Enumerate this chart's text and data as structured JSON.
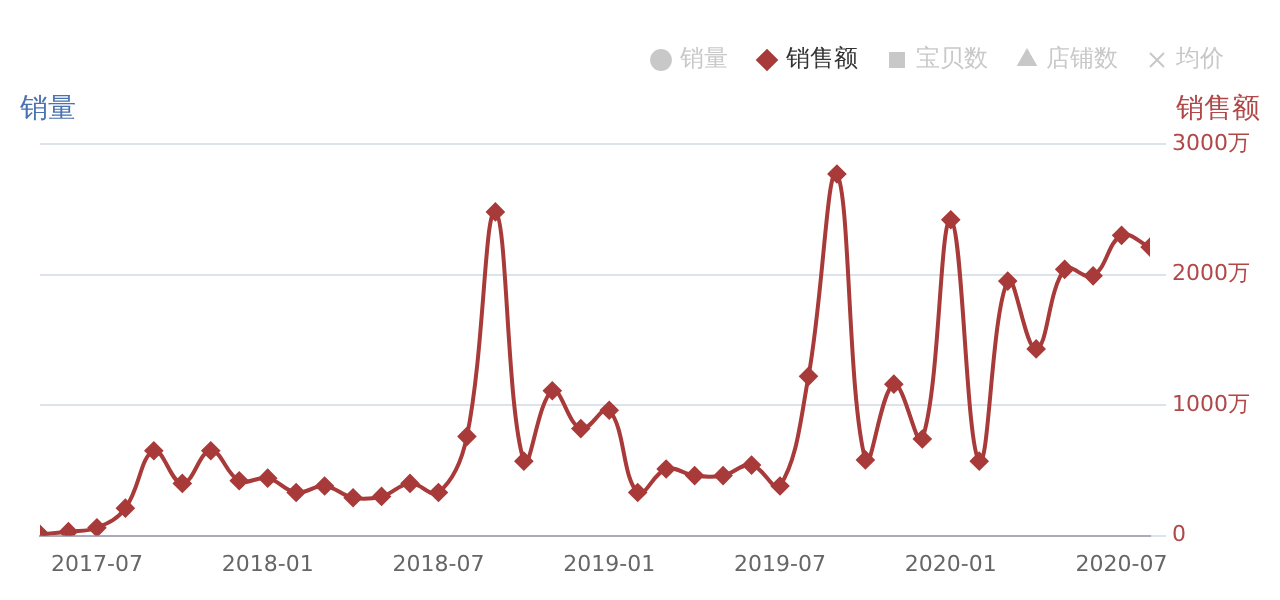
{
  "chart_data": {
    "type": "line",
    "ylabel": "销量",
    "y2label": "销售额",
    "x": [
      "2017-05",
      "2017-06",
      "2017-07",
      "2017-08",
      "2017-09",
      "2017-10",
      "2017-11",
      "2017-12",
      "2018-01",
      "2018-02",
      "2018-03",
      "2018-04",
      "2018-05",
      "2018-06",
      "2018-07",
      "2018-08",
      "2018-09",
      "2018-10",
      "2018-11",
      "2018-12",
      "2019-01",
      "2019-02",
      "2019-03",
      "2019-04",
      "2019-05",
      "2019-06",
      "2019-07",
      "2019-08",
      "2019-09",
      "2019-10",
      "2019-11",
      "2019-12",
      "2020-01",
      "2020-02",
      "2020-03",
      "2020-04",
      "2020-05",
      "2020-06",
      "2020-07",
      "2020-08"
    ],
    "series": [
      {
        "name": "销量",
        "color": "#c8c8c8",
        "marker": "circle",
        "values": [
          null,
          null,
          null,
          null,
          null,
          null,
          null,
          null,
          null,
          null,
          null,
          null,
          null,
          null,
          null,
          null,
          null,
          null,
          null,
          null,
          null,
          null,
          null,
          null,
          null,
          null,
          null,
          null,
          null,
          null,
          null,
          null,
          null,
          null,
          null,
          null,
          null,
          null,
          null,
          null
        ]
      },
      {
        "name": "销售额",
        "color": "#a83a3a",
        "marker": "diamond",
        "axis": "y2",
        "values": [
          10,
          30,
          60,
          210,
          650,
          400,
          650,
          420,
          440,
          330,
          380,
          290,
          300,
          400,
          330,
          760,
          2480,
          570,
          1110,
          820,
          960,
          330,
          510,
          460,
          460,
          540,
          380,
          1220,
          2770,
          580,
          1160,
          740,
          2420,
          570,
          1950,
          1430,
          2040,
          1990,
          2300,
          2210
        ]
      },
      {
        "name": "宝贝数",
        "color": "#c8c8c8",
        "marker": "square",
        "values": [
          null,
          null,
          null,
          null,
          null,
          null,
          null,
          null,
          null,
          null,
          null,
          null,
          null,
          null,
          null,
          null,
          null,
          null,
          null,
          null,
          null,
          null,
          null,
          null,
          null,
          null,
          null,
          null,
          null,
          null,
          null,
          null,
          null,
          null,
          null,
          null,
          null,
          null,
          null,
          null
        ]
      },
      {
        "name": "店铺数",
        "color": "#c8c8c8",
        "marker": "triangle",
        "values": [
          null,
          null,
          null,
          null,
          null,
          null,
          null,
          null,
          null,
          null,
          null,
          null,
          null,
          null,
          null,
          null,
          null,
          null,
          null,
          null,
          null,
          null,
          null,
          null,
          null,
          null,
          null,
          null,
          null,
          null,
          null,
          null,
          null,
          null,
          null,
          null,
          null,
          null,
          null,
          null
        ]
      },
      {
        "name": "均价",
        "color": "#c8c8c8",
        "marker": "cross",
        "values": [
          null,
          null,
          null,
          null,
          null,
          null,
          null,
          null,
          null,
          null,
          null,
          null,
          null,
          null,
          null,
          null,
          null,
          null,
          null,
          null,
          null,
          null,
          null,
          null,
          null,
          null,
          null,
          null,
          null,
          null,
          null,
          null,
          null,
          null,
          null,
          null,
          null,
          null,
          null,
          null
        ]
      }
    ],
    "xlim": [
      "2017-05",
      "2020-08"
    ],
    "xticks": [
      "2017-07",
      "2018-01",
      "2018-07",
      "2019-01",
      "2019-07",
      "2020-01",
      "2020-07"
    ],
    "y2lim": [
      0,
      3000
    ],
    "y2ticks": [
      0,
      {
        "value": 1000,
        "label": "1000万"
      },
      {
        "value": 2000,
        "label": "2000万"
      },
      {
        "value": 3000,
        "label": "3000万"
      }
    ],
    "grid": "y",
    "legend": "top right"
  }
}
